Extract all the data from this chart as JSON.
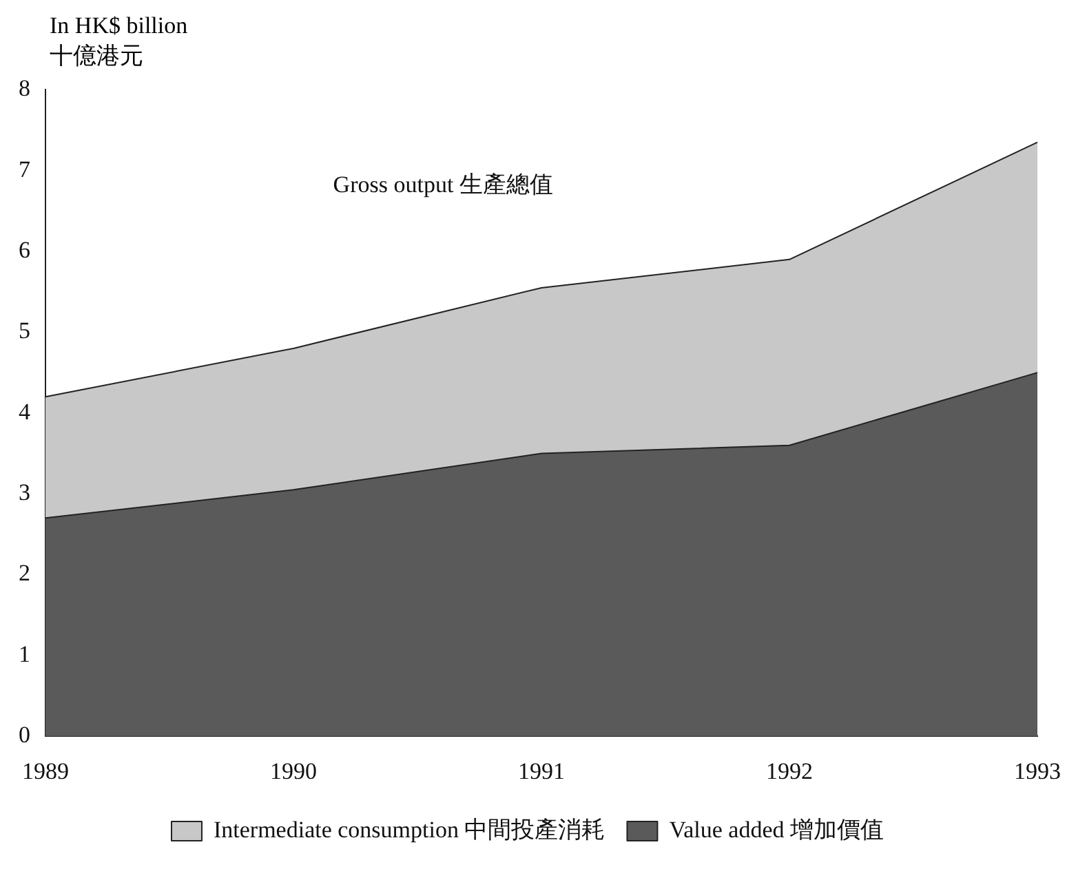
{
  "chart_data": {
    "type": "area",
    "ylabel": "In HK$ billion\n十億港元",
    "categories": [
      "1989",
      "1990",
      "1991",
      "1992",
      "1993"
    ],
    "stacked": true,
    "series": [
      {
        "name": "Value added 增加價值",
        "color": "#5a5a5a",
        "values": [
          2.7,
          3.05,
          3.5,
          3.6,
          4.5
        ]
      },
      {
        "name": "Intermediate consumption 中間投產消耗",
        "color": "#c8c8c8",
        "values": [
          1.5,
          1.75,
          2.05,
          2.3,
          2.85
        ]
      }
    ],
    "ylim": [
      0,
      8
    ],
    "yticks": [
      0,
      1,
      2,
      3,
      4,
      5,
      6,
      7,
      8
    ],
    "grid": false,
    "legend": "bottom",
    "annotations": [
      "Gross output 生產總值"
    ]
  }
}
